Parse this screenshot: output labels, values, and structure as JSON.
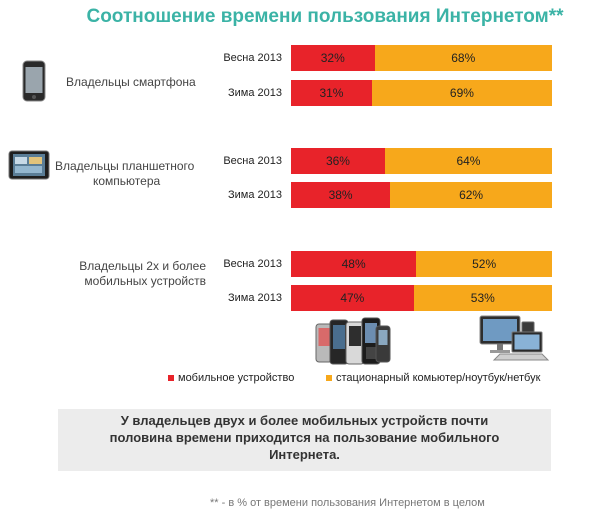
{
  "title": "Соотношение времени пользования Интернетом**",
  "colors": {
    "mobile": "#e8232a",
    "desktop": "#f7a81b",
    "title": "#3bb3a6"
  },
  "chart_data": {
    "type": "bar",
    "stacked": true,
    "orientation": "horizontal",
    "groups": [
      {
        "label_lines": [
          "Владельцы смартфона"
        ],
        "icon": "smartphone-icon",
        "rows": [
          {
            "period": "Весна 2013",
            "mobile": 32,
            "desktop": 68,
            "mobile_label": "32%",
            "desktop_label": "68%"
          },
          {
            "period": "Зима 2013",
            "mobile": 31,
            "desktop": 69,
            "mobile_label": "31%",
            "desktop_label": "69%"
          }
        ]
      },
      {
        "label_lines": [
          "Владельцы планшетного",
          "компьютера"
        ],
        "icon": "tablet-icon",
        "rows": [
          {
            "period": "Весна 2013",
            "mobile": 36,
            "desktop": 64,
            "mobile_label": "36%",
            "desktop_label": "64%"
          },
          {
            "period": "Зима 2013",
            "mobile": 38,
            "desktop": 62,
            "mobile_label": "38%",
            "desktop_label": "62%"
          }
        ]
      },
      {
        "label_lines": [
          "Владельцы 2х и более",
          "мобильных устройств"
        ],
        "icon": "",
        "rows": [
          {
            "period": "Весна 2013",
            "mobile": 48,
            "desktop": 52,
            "mobile_label": "48%",
            "desktop_label": "52%"
          },
          {
            "period": "Зима 2013",
            "mobile": 47,
            "desktop": 53,
            "mobile_label": "47%",
            "desktop_label": "53%"
          }
        ]
      }
    ],
    "series": [
      {
        "name": "мобильное устройство",
        "key": "mobile"
      },
      {
        "name": "стационарный комьютер/ноутбук/нетбук",
        "key": "desktop"
      }
    ],
    "xlim": [
      0,
      100
    ]
  },
  "legend": {
    "mobile": "мобильное устройство",
    "desktop": "стационарный комьютер/ноутбук/нетбук"
  },
  "summary_lines": [
    "У владельцев двух и более мобильных устройств почти",
    "половина времени приходится на пользование мобильного",
    "Интернета."
  ],
  "footnote": "** -  в % от времени пользования Интернетом в целом"
}
